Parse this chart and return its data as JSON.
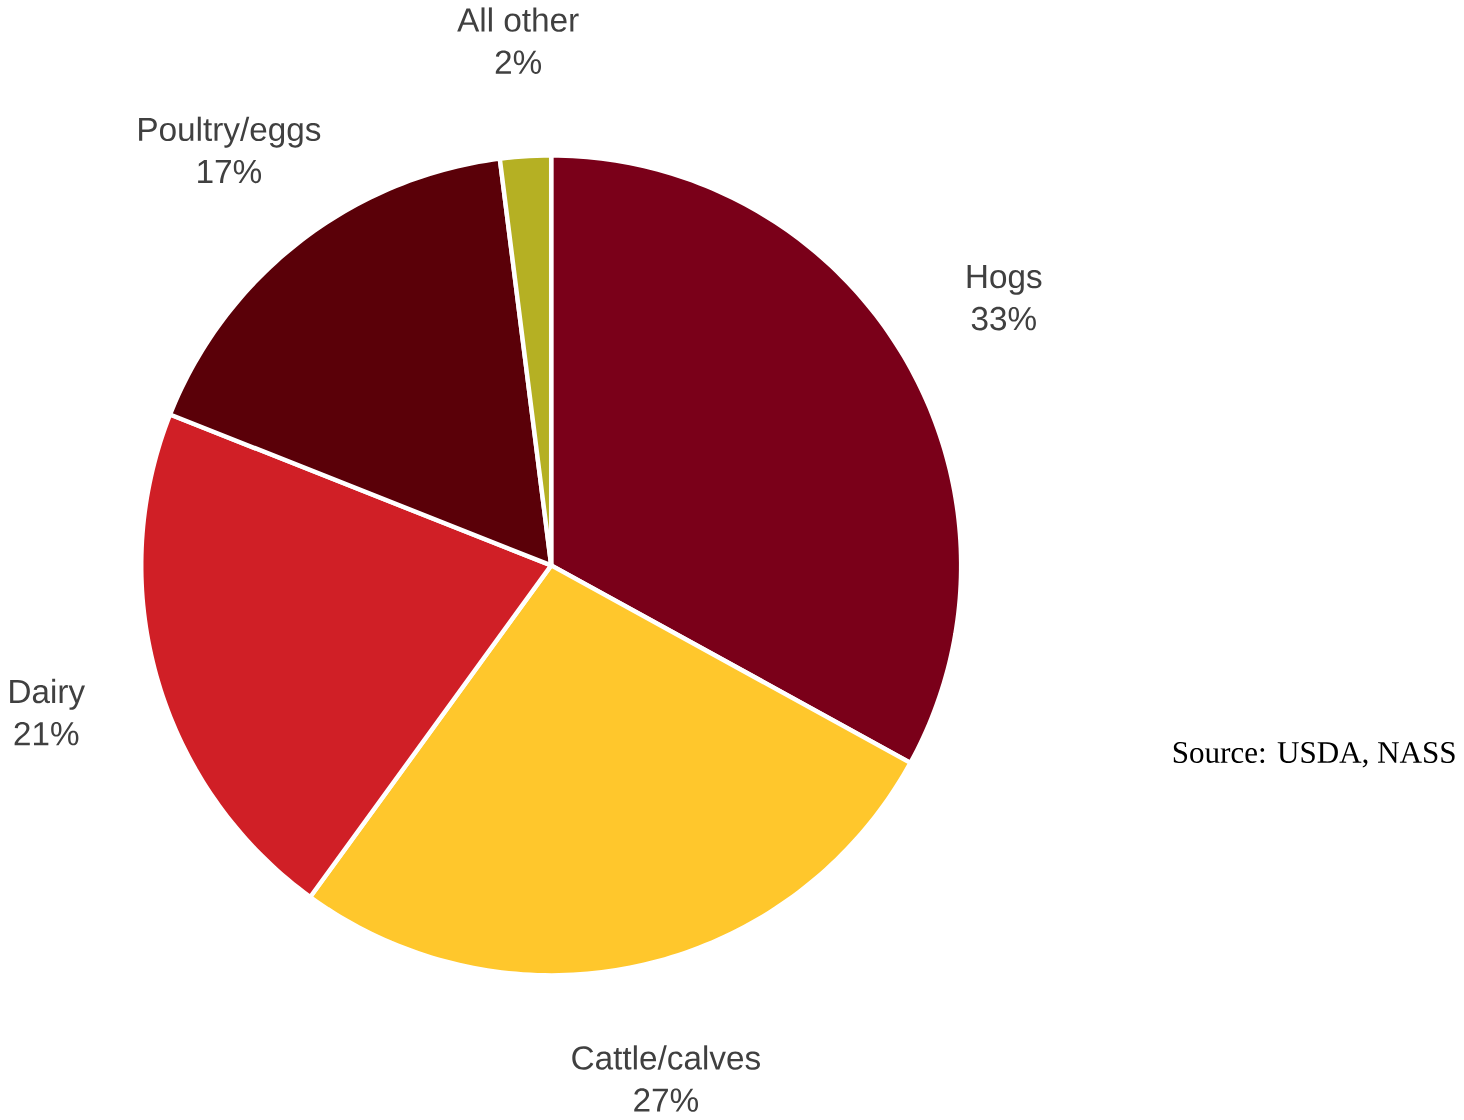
{
  "chart_data": {
    "type": "pie",
    "categories": [
      "Hogs",
      "Cattle/calves",
      "Dairy",
      "Poultry/eggs",
      "All other"
    ],
    "values": [
      33,
      27,
      21,
      17,
      2
    ],
    "colors": [
      "#7a0019",
      "#ffc72c",
      "#d01f26",
      "#5a0008",
      "#b5b023"
    ],
    "value_labels": [
      "33%",
      "27%",
      "21%",
      "17%",
      "2%"
    ],
    "annotations": [
      "Source: USDA, NASS"
    ]
  }
}
